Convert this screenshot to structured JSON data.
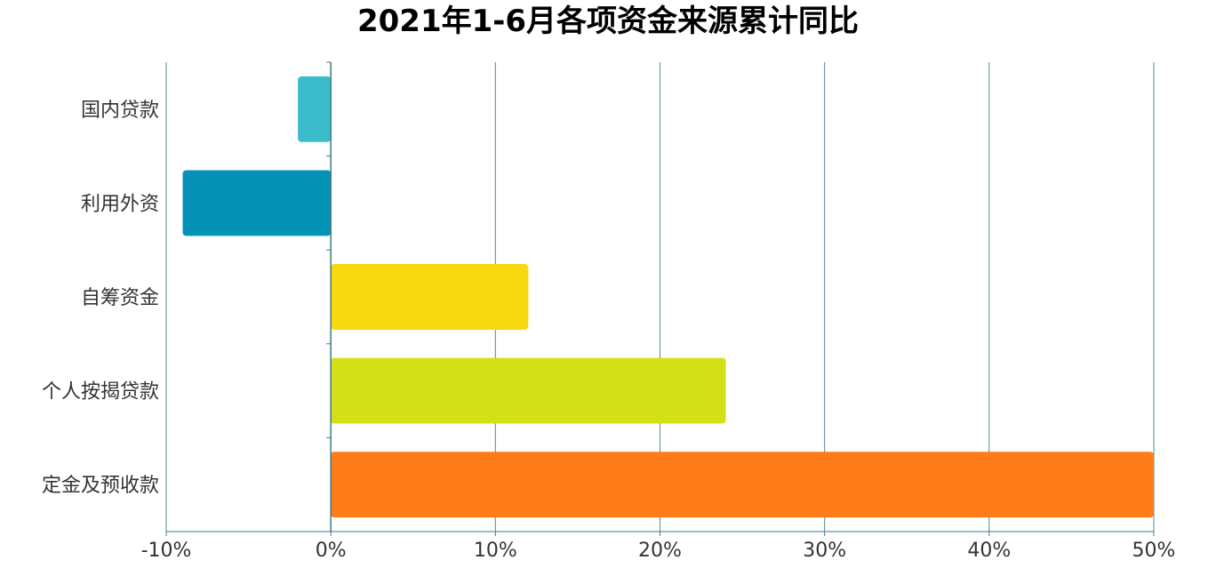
{
  "chart_data": {
    "type": "bar",
    "orientation": "horizontal",
    "title": "2021年1-6月各项资金来源累计同比",
    "xlabel": "",
    "ylabel": "",
    "xlim": [
      -10,
      50
    ],
    "x_ticks": [
      -10,
      0,
      10,
      20,
      30,
      40,
      50
    ],
    "x_tick_labels": [
      "-10%",
      "0%",
      "10%",
      "20%",
      "30%",
      "40%",
      "50%"
    ],
    "grid": "vertical",
    "legend": "none",
    "categories": [
      "国内贷款",
      "利用外资",
      "自筹资金",
      "个人按揭贷款",
      "定金及预收款"
    ],
    "values": [
      -2.0,
      -9.0,
      12.0,
      24.0,
      50.0
    ],
    "colors": [
      "#3bbccb",
      "#0493b6",
      "#f8d80f",
      "#d4e017",
      "#fd7c18"
    ]
  },
  "colors": {
    "grid": "#4f8a92",
    "axis": "#3f7a82",
    "tick_text": "#333333"
  }
}
